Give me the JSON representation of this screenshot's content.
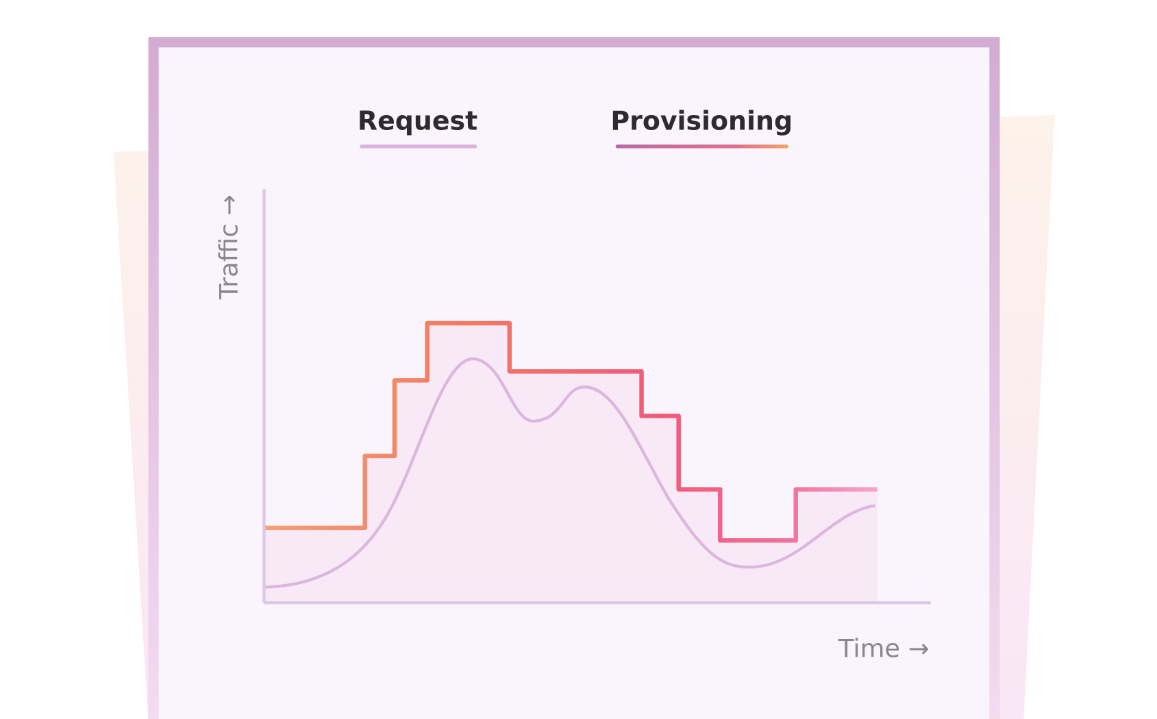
{
  "legend": {
    "request": "Request",
    "provisioning": "Provisioning"
  },
  "axes": {
    "y": "Traffic →",
    "x": "Time →"
  }
}
